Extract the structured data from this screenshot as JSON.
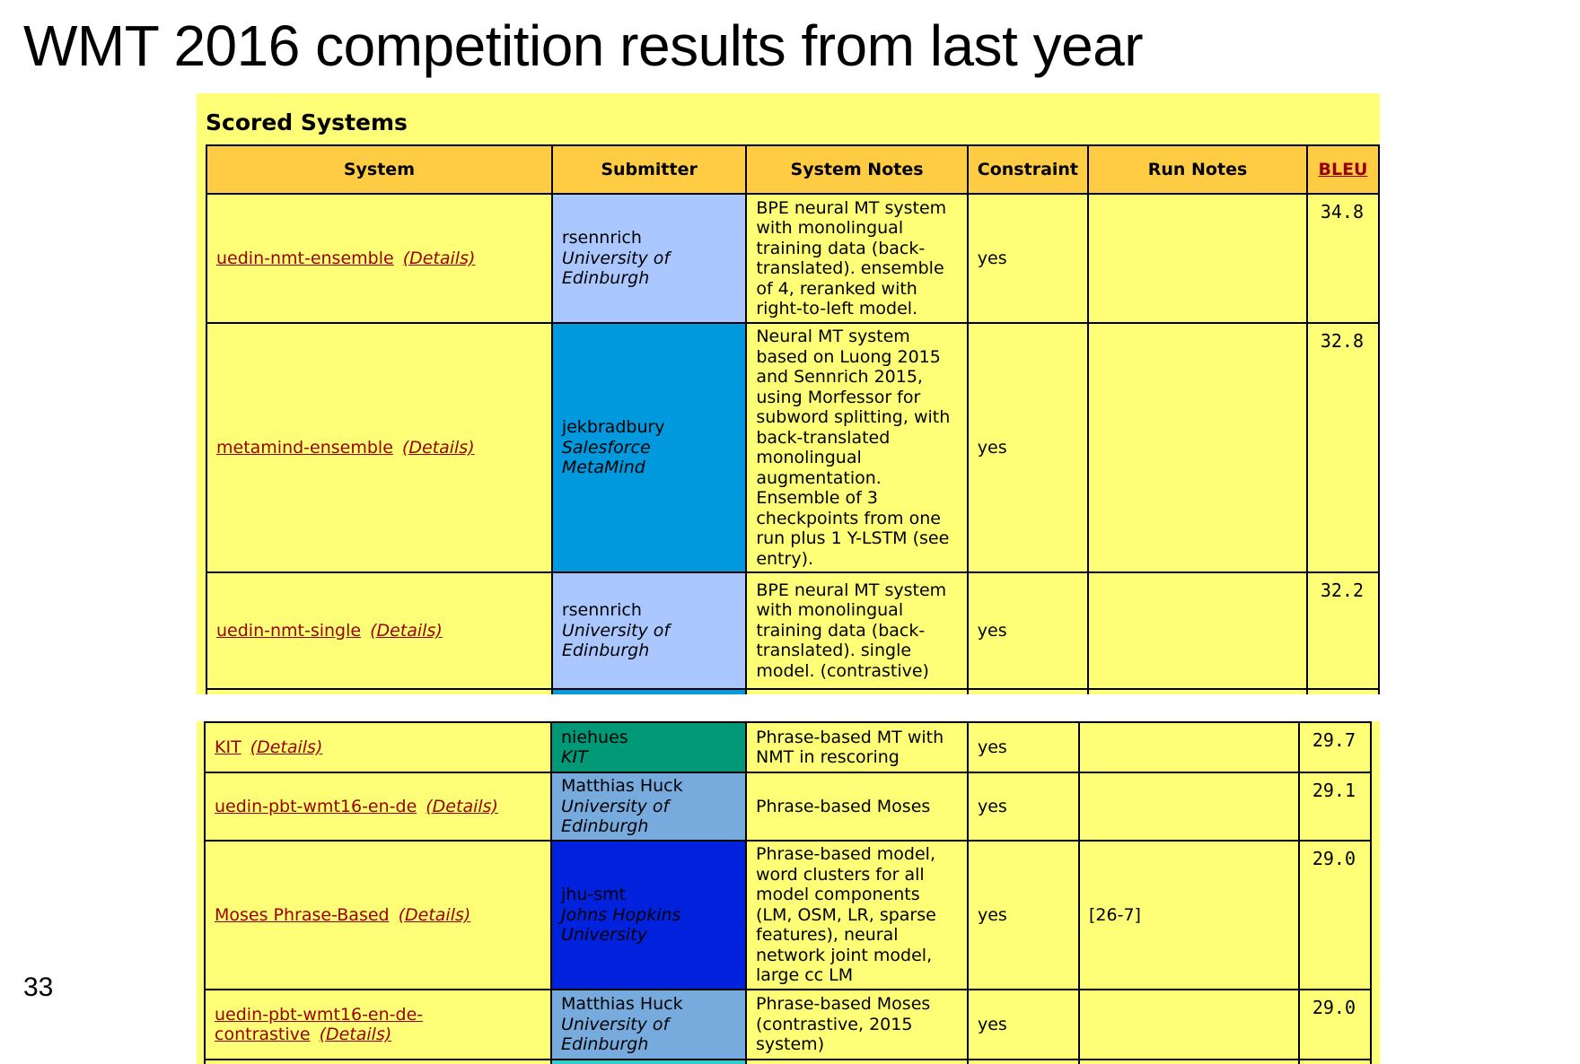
{
  "slide": {
    "title": "WMT 2016 competition results from last year",
    "page_number": "33"
  },
  "table": {
    "heading": "Scored Systems",
    "columns": [
      "System",
      "Submitter",
      "System Notes",
      "Constraint",
      "Run Notes",
      "BLEU"
    ],
    "details_label": "(Details)",
    "top_rows": [
      {
        "system": "uedin-nmt-ensemble",
        "submitter": "rsennrich",
        "affiliation": "University of Edinburgh",
        "notes": "BPE neural MT system with monolingual training data (back-translated). ensemble of 4, reranked with right-to-left model.",
        "constraint": "yes",
        "run_notes": "",
        "bleu": "34.8",
        "submitter_color": "#aac8ff"
      },
      {
        "system": "metamind-ensemble",
        "submitter": "jekbradbury",
        "affiliation": "Salesforce MetaMind",
        "notes": "Neural MT system based on Luong 2015 and Sennrich 2015, using Morfessor for subword splitting, with back-translated monolingual augmentation. Ensemble of 3 checkpoints from one run plus 1 Y-LSTM (see entry).",
        "constraint": "yes",
        "run_notes": "",
        "bleu": "32.8",
        "submitter_color": "#0099dd"
      },
      {
        "system": "uedin-nmt-single",
        "submitter": "rsennrich",
        "affiliation": "University of Edinburgh",
        "notes": "BPE neural MT system with monolingual training data (back-translated). single model. (contrastive)",
        "constraint": "yes",
        "run_notes": "",
        "bleu": "32.2",
        "submitter_color": "#aac8ff"
      }
    ],
    "bottom_rows": [
      {
        "system": "KIT",
        "submitter": "niehues",
        "affiliation": "KIT",
        "notes": "Phrase-based MT with NMT in rescoring",
        "constraint": "yes",
        "run_notes": "",
        "bleu": "29.7",
        "submitter_color": "#009977"
      },
      {
        "system": "uedin-pbt-wmt16-en-de",
        "submitter": "Matthias Huck",
        "affiliation": "University of Edinburgh",
        "notes": "Phrase-based Moses",
        "constraint": "yes",
        "run_notes": "",
        "bleu": "29.1",
        "submitter_color": "#77aadd"
      },
      {
        "system": "Moses Phrase-Based",
        "submitter": "jhu-smt",
        "affiliation": "Johns Hopkins University",
        "notes": "Phrase-based model, word clusters for all model components (LM, OSM, LR, sparse features), neural network joint model, large cc LM",
        "constraint": "yes",
        "run_notes": "[26-7]",
        "bleu": "29.0",
        "submitter_color": "#0022dd"
      },
      {
        "system": "uedin-pbt-wmt16-en-de-contrastive",
        "submitter": "Matthias Huck",
        "affiliation": "University of Edinburgh",
        "notes": "Phrase-based Moses (contrastive, 2015 system)",
        "constraint": "yes",
        "run_notes": "",
        "bleu": "29.0",
        "submitter_color": "#77aadd"
      }
    ]
  }
}
